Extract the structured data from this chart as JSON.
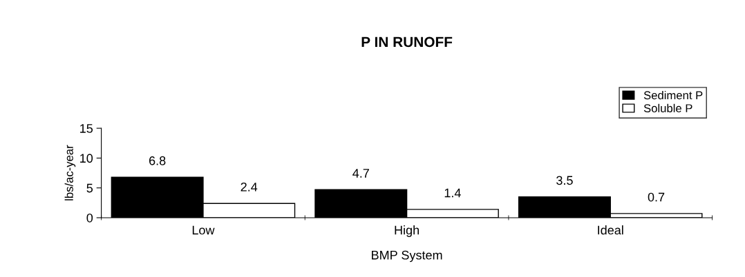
{
  "chart_data": {
    "type": "bar",
    "title": "P IN RUNOFF",
    "xlabel": "BMP System",
    "ylabel": "lbs/ac-year",
    "categories": [
      "Low",
      "High",
      "Ideal"
    ],
    "series": [
      {
        "name": "Sediment P",
        "color": "#000000",
        "values": [
          6.8,
          4.7,
          3.5
        ]
      },
      {
        "name": "Soluble P",
        "color": "#ffffff",
        "values": [
          2.4,
          1.4,
          0.7
        ]
      }
    ],
    "ylim": [
      0,
      15
    ],
    "yticks": [
      0,
      5,
      10,
      15
    ],
    "data_labels": true,
    "legend": "top right",
    "grid": false
  }
}
